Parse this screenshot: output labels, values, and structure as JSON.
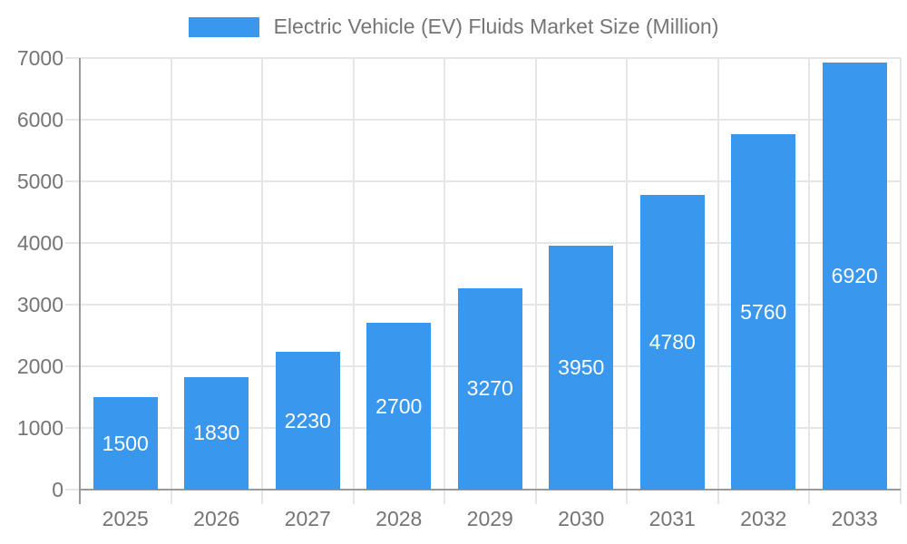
{
  "legend": {
    "position": "top",
    "label": "Electric Vehicle (EV) Fluids Market Size (Million)"
  },
  "chart_data": {
    "type": "bar",
    "title": "Electric Vehicle (EV) Fluids Market Size (Million)",
    "series_name": "Electric Vehicle (EV) Fluids Market Size (Million)",
    "categories": [
      "2025",
      "2026",
      "2027",
      "2028",
      "2029",
      "2030",
      "2031",
      "2032",
      "2033"
    ],
    "values": [
      1500,
      1830,
      2230,
      2700,
      3270,
      3950,
      4780,
      5760,
      6920
    ],
    "yticks": [
      0,
      1000,
      2000,
      3000,
      4000,
      5000,
      6000,
      7000
    ],
    "ylim": [
      0,
      7000
    ],
    "ytick_step": 1000,
    "xlabel": "",
    "ylabel": "",
    "grid": true,
    "legend_position": "top",
    "bar_color": "#3a97ee",
    "value_label_color": "#ffffff",
    "axis_color": "#9a9a9a",
    "grid_color": "#e6e6e6",
    "tick_label_color": "#757575"
  }
}
